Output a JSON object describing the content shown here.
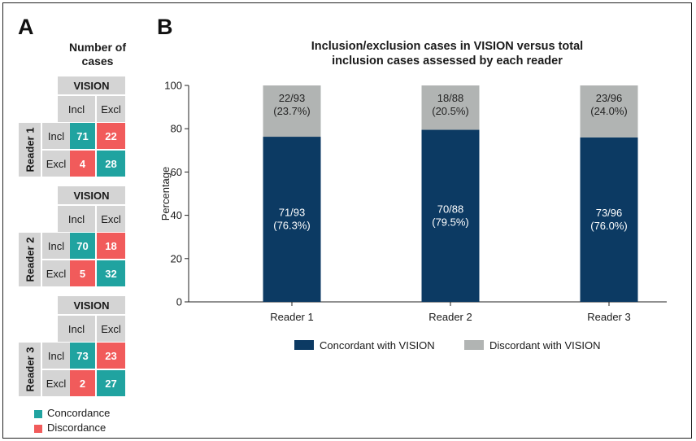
{
  "panel_a": {
    "letter": "A",
    "title_line1": "Number of",
    "title_line2": "cases",
    "matrices": [
      {
        "reader": "Reader 1",
        "header": "VISION",
        "col1": "Incl",
        "col2": "Excl",
        "row1": "Incl",
        "row2": "Excl",
        "tp": "71",
        "fp": "22",
        "fn": "4",
        "tn": "28"
      },
      {
        "reader": "Reader 2",
        "header": "VISION",
        "col1": "Incl",
        "col2": "Excl",
        "row1": "Incl",
        "row2": "Excl",
        "tp": "70",
        "fp": "18",
        "fn": "5",
        "tn": "32"
      },
      {
        "reader": "Reader 3",
        "header": "VISION",
        "col1": "Incl",
        "col2": "Excl",
        "row1": "Incl",
        "row2": "Excl",
        "tp": "73",
        "fp": "23",
        "fn": "2",
        "tn": "27"
      }
    ],
    "key": {
      "concordance": "Concordance",
      "discordance": "Discordance",
      "concordance_color": "#20a3a0",
      "discordance_color": "#f15b5b"
    }
  },
  "panel_b": {
    "letter": "B"
  },
  "chart_data": {
    "type": "bar",
    "stacked": true,
    "title_line1": "Inclusion/exclusion cases in VISION versus total",
    "title_line2": "inclusion cases assessed by each reader",
    "ylabel": "Percentage",
    "ylim": [
      0,
      100
    ],
    "yticks": [
      "0",
      "20",
      "40",
      "60",
      "80",
      "100"
    ],
    "grid": false,
    "legend_position": "bottom",
    "categories": [
      "Reader 1",
      "Reader 2",
      "Reader 3"
    ],
    "series": [
      {
        "name": "Concordant with VISION",
        "color": "#0c3a63",
        "values": [
          76.3,
          79.5,
          76.0
        ],
        "labels_top": [
          "71/93",
          "70/88",
          "73/96"
        ],
        "labels_bottom": [
          "(76.3%)",
          "(79.5%)",
          "(76.0%)"
        ]
      },
      {
        "name": "Discordant with VISION",
        "color": "#b1b4b3",
        "values": [
          23.7,
          20.5,
          24.0
        ],
        "labels_top": [
          "22/93",
          "18/88",
          "23/96"
        ],
        "labels_bottom": [
          "(23.7%)",
          "(20.5%)",
          "(24.0%)"
        ]
      }
    ]
  }
}
